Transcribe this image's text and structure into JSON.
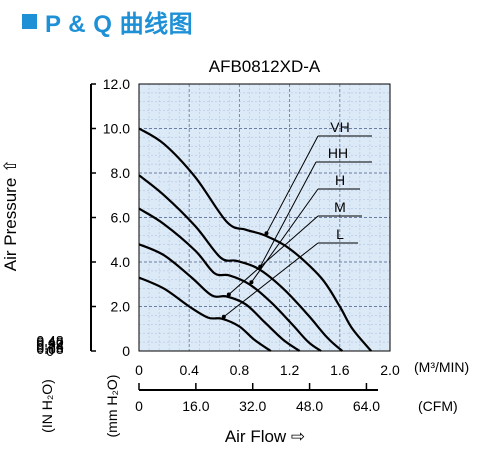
{
  "heading": {
    "text": "P & Q 曲线图",
    "accent": "#1e90d6"
  },
  "chart_data": {
    "type": "line",
    "title": "AFB0812XD-A",
    "xlabel": "Air Flow ⇨",
    "ylabel": "Air Pressure ⇧",
    "x_unit_top": "(M³/MIN)",
    "x_unit_bottom": "(CFM)",
    "y_unit_left": "(IN H₂O)",
    "y_unit_right": "(mm H₂O)",
    "xlim": [
      0,
      2.0
    ],
    "ylim": [
      0,
      12.0
    ],
    "x_ticks": [
      "0",
      "0.4",
      "0.8",
      "1.2",
      "1.6",
      "2.0"
    ],
    "x_ticks_cfm": [
      "0",
      "16.0",
      "32.0",
      "48.0",
      "64.0"
    ],
    "y_ticks_mm": [
      "0",
      "2.0",
      "4.0",
      "6.0",
      "8.0",
      "10.0",
      "12.0"
    ],
    "y_ticks_in": [
      "0",
      "0.08",
      "0.16",
      "0.24",
      "0.32",
      "0.40",
      "0.48"
    ],
    "grid": true,
    "background": "#dce9f7",
    "series": [
      {
        "name": "VH",
        "x": [
          0,
          0.2,
          0.45,
          0.7,
          0.85,
          1.0,
          1.2,
          1.45,
          1.6,
          1.7,
          1.85
        ],
        "y": [
          10.0,
          9.3,
          7.8,
          5.8,
          5.45,
          5.2,
          4.6,
          3.3,
          2.0,
          1.0,
          0
        ]
      },
      {
        "name": "HH",
        "x": [
          0,
          0.2,
          0.45,
          0.65,
          0.78,
          0.95,
          1.15,
          1.35,
          1.5,
          1.62
        ],
        "y": [
          7.9,
          7.0,
          5.6,
          4.2,
          4.05,
          3.7,
          2.8,
          1.6,
          0.6,
          0
        ]
      },
      {
        "name": "H",
        "x": [
          0,
          0.2,
          0.45,
          0.6,
          0.72,
          0.88,
          1.05,
          1.22,
          1.35,
          1.45
        ],
        "y": [
          6.4,
          5.7,
          4.5,
          3.5,
          3.4,
          3.0,
          2.2,
          1.2,
          0.4,
          0
        ]
      },
      {
        "name": "M",
        "x": [
          0,
          0.2,
          0.42,
          0.58,
          0.7,
          0.85,
          1.0,
          1.15,
          1.28
        ],
        "y": [
          4.8,
          4.3,
          3.3,
          2.5,
          2.45,
          2.1,
          1.3,
          0.5,
          0
        ]
      },
      {
        "name": "L",
        "x": [
          0,
          0.2,
          0.4,
          0.55,
          0.66,
          0.8,
          0.92,
          1.05
        ],
        "y": [
          3.3,
          2.8,
          2.0,
          1.5,
          1.45,
          1.1,
          0.5,
          0
        ]
      }
    ]
  }
}
